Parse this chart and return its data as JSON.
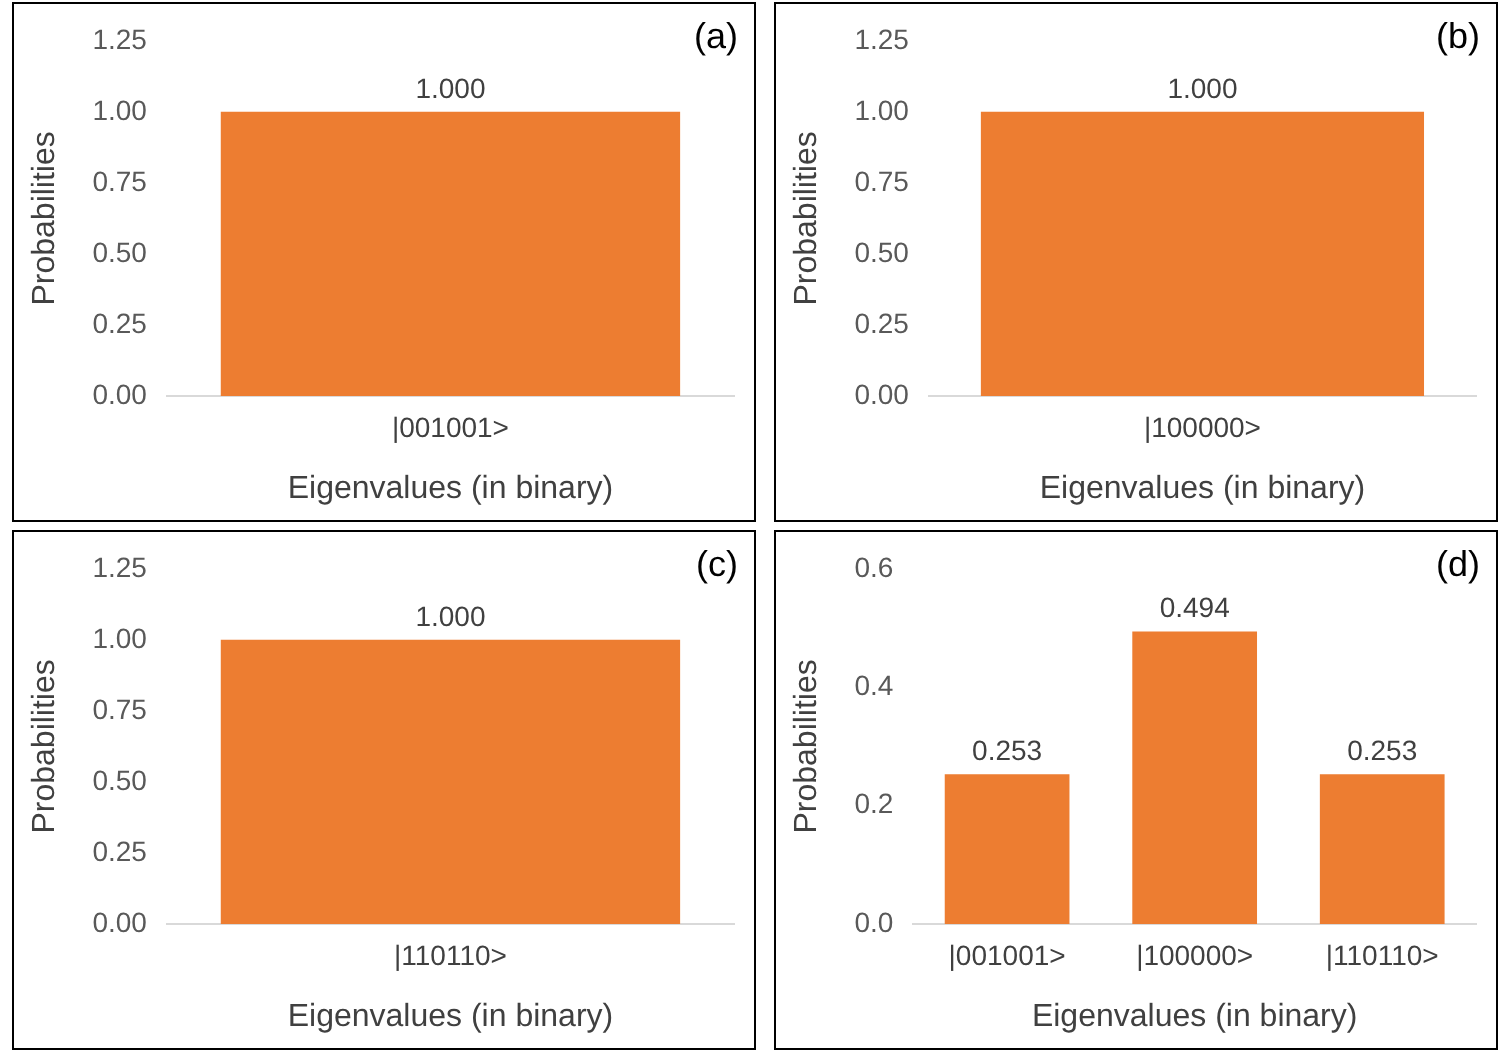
{
  "chart_data": [
    {
      "type": "bar",
      "categories": [
        "|001001>"
      ],
      "values": [
        1.0
      ],
      "value_labels": [
        "1.000"
      ],
      "color": "#ed7d31",
      "xlabel": "Eigenvalues (in binary)",
      "ylabel": "Probabilities",
      "ylim": [
        0,
        1.25
      ],
      "yticks": [
        {
          "value": 0,
          "label": "0.00"
        },
        {
          "value": 0.25,
          "label": "0.25"
        },
        {
          "value": 0.5,
          "label": "0.50"
        },
        {
          "value": 0.75,
          "label": "0.75"
        },
        {
          "value": 1,
          "label": "1.00"
        },
        {
          "value": 1.25,
          "label": "1.25"
        }
      ],
      "grid": false,
      "legend": false,
      "annotations": [
        "(a)"
      ]
    },
    {
      "type": "bar",
      "categories": [
        "|100000>"
      ],
      "values": [
        1.0
      ],
      "value_labels": [
        "1.000"
      ],
      "color": "#ed7d31",
      "xlabel": "Eigenvalues (in binary)",
      "ylabel": "Probabilities",
      "ylim": [
        0,
        1.25
      ],
      "yticks": [
        {
          "value": 0,
          "label": "0.00"
        },
        {
          "value": 0.25,
          "label": "0.25"
        },
        {
          "value": 0.5,
          "label": "0.50"
        },
        {
          "value": 0.75,
          "label": "0.75"
        },
        {
          "value": 1,
          "label": "1.00"
        },
        {
          "value": 1.25,
          "label": "1.25"
        }
      ],
      "grid": false,
      "legend": false,
      "annotations": [
        "(b)"
      ]
    },
    {
      "type": "bar",
      "categories": [
        "|110110>"
      ],
      "values": [
        1.0
      ],
      "value_labels": [
        "1.000"
      ],
      "color": "#ed7d31",
      "xlabel": "Eigenvalues (in binary)",
      "ylabel": "Probabilities",
      "ylim": [
        0,
        1.25
      ],
      "yticks": [
        {
          "value": 0,
          "label": "0.00"
        },
        {
          "value": 0.25,
          "label": "0.25"
        },
        {
          "value": 0.5,
          "label": "0.50"
        },
        {
          "value": 0.75,
          "label": "0.75"
        },
        {
          "value": 1,
          "label": "1.00"
        },
        {
          "value": 1.25,
          "label": "1.25"
        }
      ],
      "grid": false,
      "legend": false,
      "annotations": [
        "(c)"
      ]
    },
    {
      "type": "bar",
      "categories": [
        "|001001>",
        "|100000>",
        "|110110>"
      ],
      "values": [
        0.253,
        0.494,
        0.253
      ],
      "data_labels": true,
      "color": "#ed7d31",
      "xlabel": "Eigenvalues (in binary)",
      "ylabel": "Probabilities",
      "ylim": [
        0,
        0.6
      ],
      "yticks": [
        {
          "value": 0,
          "label": "0.0"
        },
        {
          "value": 0.2,
          "label": "0.2"
        },
        {
          "value": 0.4,
          "label": "0.4"
        },
        {
          "value": 0.6,
          "label": "0.6"
        }
      ],
      "grid": false,
      "legend": false,
      "annotations": [
        "(d)"
      ]
    }
  ]
}
